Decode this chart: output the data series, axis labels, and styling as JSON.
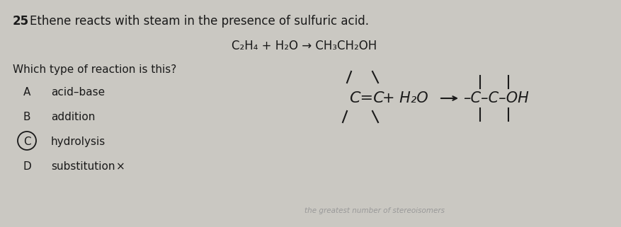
{
  "background_color": "#cac8c2",
  "question_number": "25",
  "title_text": "Ethene reacts with steam in the presence of sulfuric acid.",
  "equation_text": "C₂H₄ + H₂O → CH₃CH₂OH",
  "question_text": "Which type of reaction is this?",
  "options": [
    {
      "label": "A",
      "text": "acid–base",
      "circled": false,
      "extra": null
    },
    {
      "label": "B",
      "text": "addition",
      "circled": false,
      "extra": null
    },
    {
      "label": "C",
      "text": "hydrolysis",
      "circled": true,
      "extra": null
    },
    {
      "label": "D",
      "text": "substitution",
      "circled": false,
      "extra": "×"
    }
  ],
  "text_color": "#1a1a1a",
  "font_size_title": 12,
  "font_size_question": 11,
  "font_size_options": 11,
  "font_size_equation": 12
}
